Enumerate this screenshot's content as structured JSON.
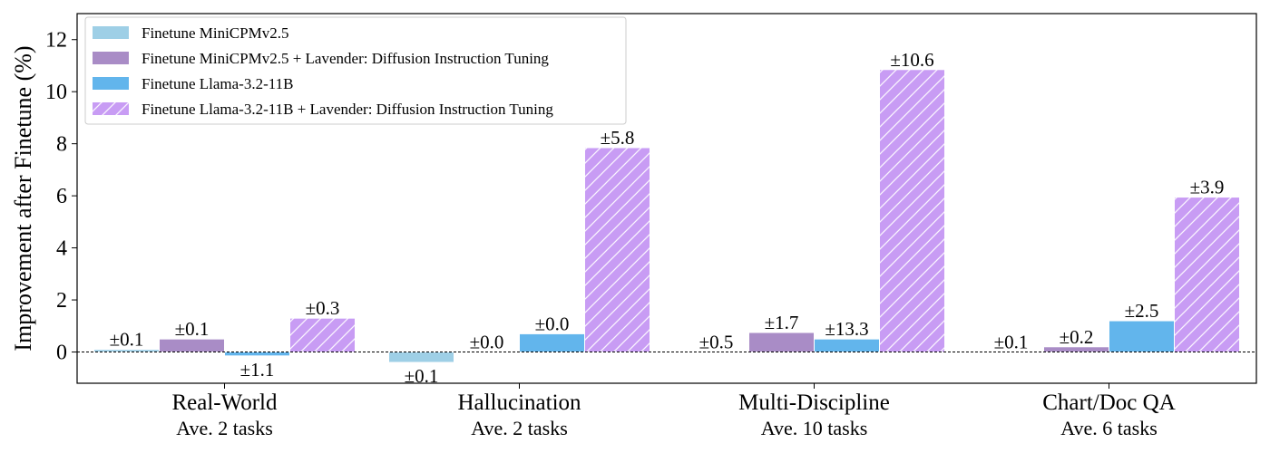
{
  "chart_data": {
    "type": "bar",
    "ylabel": "Improvement after Finetune (%)",
    "ylim": [
      -1.2,
      13
    ],
    "yticks": [
      0,
      2,
      4,
      6,
      8,
      10,
      12
    ],
    "grid": false,
    "legend_position": "top-left",
    "baseline": 0,
    "categories": [
      {
        "name": "Real-World",
        "sub": "Ave. 2 tasks"
      },
      {
        "name": "Hallucination",
        "sub": "Ave. 2 tasks"
      },
      {
        "name": "Multi-Discipline",
        "sub": "Ave. 10 tasks"
      },
      {
        "name": "Chart/Doc QA",
        "sub": "Ave. 6 tasks"
      }
    ],
    "series": [
      {
        "name": "Finetune MiniCPMv2.5",
        "color": "#9ecfe6",
        "hatch": false,
        "values": [
          0.1,
          -0.4,
          0.0,
          0.0
        ],
        "errors": [
          "±0.1",
          "±0.1",
          "±0.5",
          "±0.1"
        ]
      },
      {
        "name": "Finetune MiniCPMv2.5  + Lavender: Diffusion Instruction Tuning",
        "color": "#a98cc6",
        "hatch": false,
        "values": [
          0.5,
          0.0,
          0.75,
          0.2
        ],
        "errors": [
          "±0.1",
          "±0.0",
          "±1.7",
          "±0.2"
        ]
      },
      {
        "name": "Finetune Llama-3.2-11B",
        "color": "#62b5ec",
        "hatch": false,
        "values": [
          -0.15,
          0.7,
          0.5,
          1.2
        ],
        "errors": [
          "±1.1",
          "±0.0",
          "±13.3",
          "±2.5"
        ]
      },
      {
        "name": "Finetune Llama-3.2-11B  + Lavender: Diffusion Instruction Tuning",
        "color": "#c89cf4",
        "hatch": true,
        "values": [
          1.3,
          7.85,
          10.85,
          5.95
        ],
        "errors": [
          "±0.3",
          "±5.8",
          "±10.6",
          "±3.9"
        ]
      }
    ]
  }
}
